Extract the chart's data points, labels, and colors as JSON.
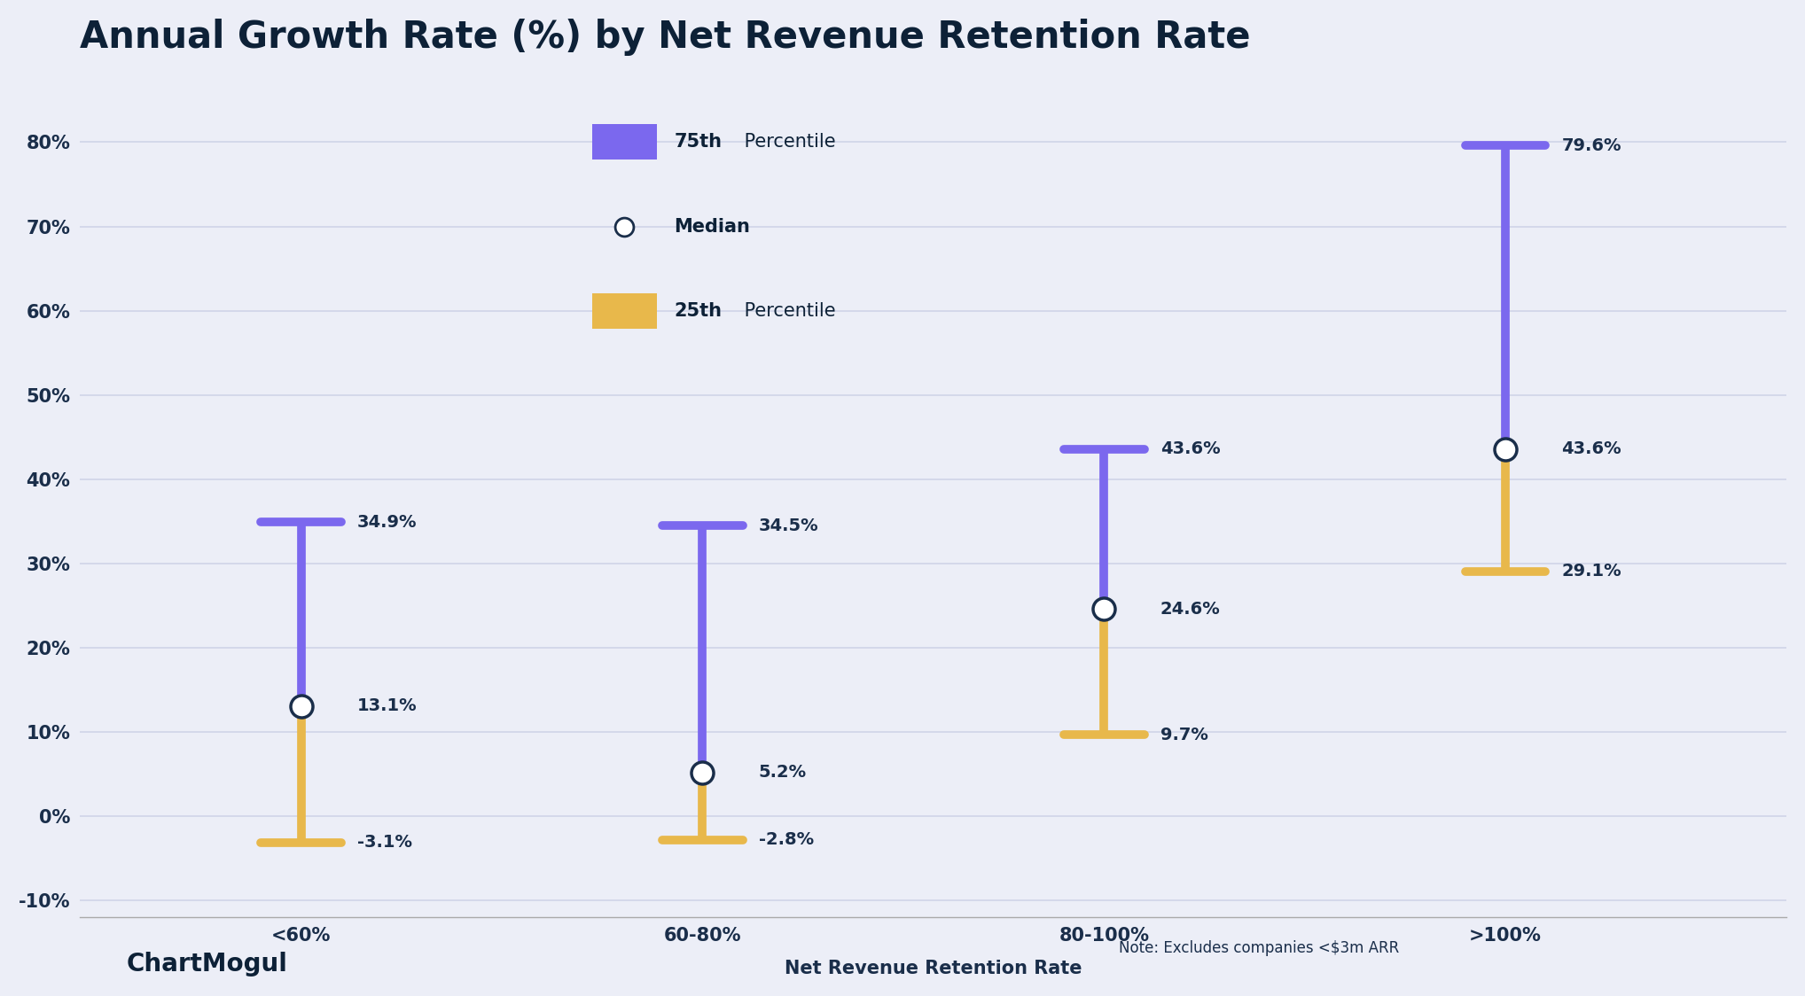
{
  "title": "Annual Growth Rate (%) by Net Revenue Retention Rate",
  "xlabel": "Net Revenue Retention Rate",
  "note": "Note: Excludes companies <$3m ARR",
  "watermark": "ChartMogul",
  "categories": [
    "<60%",
    "60-80%",
    "80-100%",
    ">100%"
  ],
  "p75": [
    34.9,
    34.5,
    43.6,
    79.6
  ],
  "median": [
    13.1,
    5.2,
    24.6,
    43.6
  ],
  "p25": [
    -3.1,
    -2.8,
    9.7,
    29.1
  ],
  "p75_color": "#7B68EE",
  "p25_color": "#E8B84B",
  "median_color": "#ffffff",
  "median_edge_color": "#1a2e4a",
  "line_width": 7,
  "ylim": [
    -12,
    88
  ],
  "yticks": [
    -10,
    0,
    10,
    20,
    30,
    40,
    50,
    60,
    70,
    80
  ],
  "ytick_labels": [
    "-10%",
    "0%",
    "10%",
    "20%",
    "30%",
    "40%",
    "50%",
    "60%",
    "70%",
    "80%"
  ],
  "background_color": "#ECEEF7",
  "grid_color": "#d0d4e8",
  "title_color": "#0D2137",
  "tick_label_color": "#1a2e4a",
  "annotation_color": "#1a2e4a",
  "title_fontsize": 30,
  "axis_label_fontsize": 15,
  "tick_fontsize": 15,
  "annotation_fontsize": 14,
  "legend_fontsize": 15,
  "note_fontsize": 12,
  "watermark_fontsize": 20
}
